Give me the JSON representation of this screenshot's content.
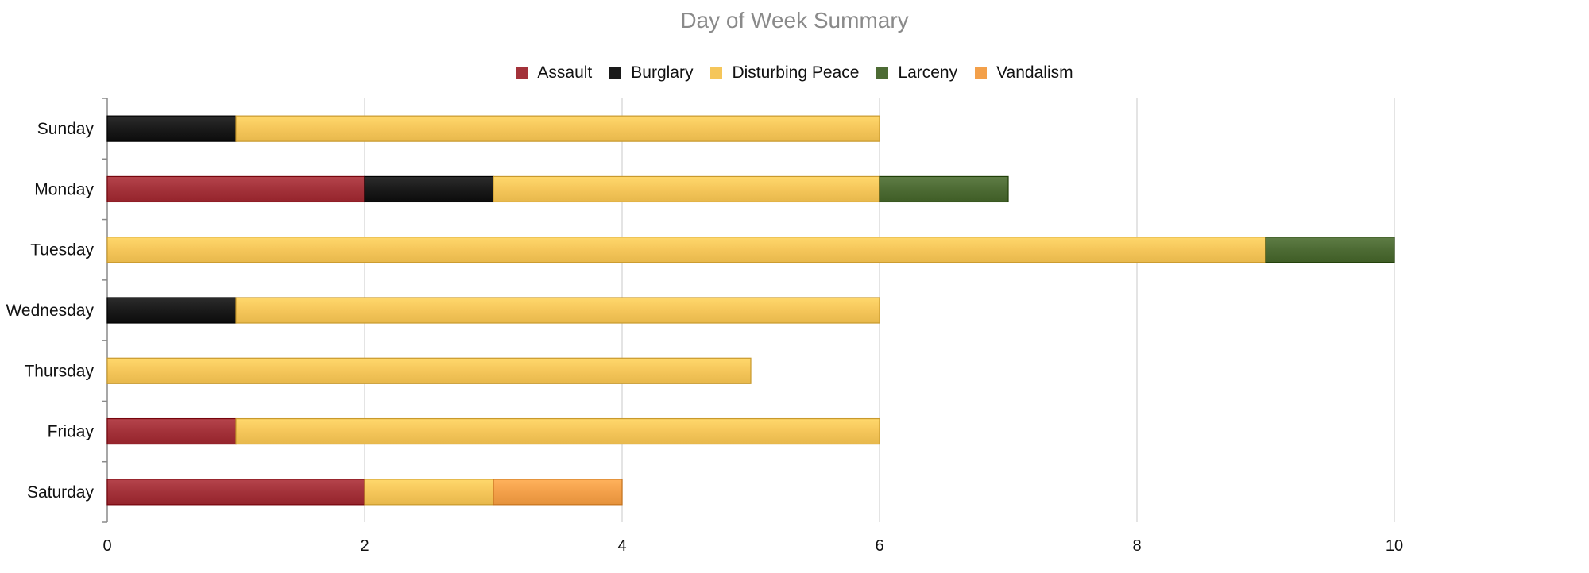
{
  "chart_data": {
    "type": "bar",
    "orientation": "horizontal",
    "stacked": true,
    "title": "Day of Week Summary",
    "categories": [
      "Sunday",
      "Monday",
      "Tuesday",
      "Wednesday",
      "Thursday",
      "Friday",
      "Saturday"
    ],
    "series": [
      {
        "name": "Assault",
        "color": "#a3323a",
        "values": [
          0,
          2,
          0,
          0,
          0,
          1,
          2
        ]
      },
      {
        "name": "Burglary",
        "color": "#1a1a1a",
        "values": [
          1,
          1,
          0,
          1,
          0,
          0,
          0
        ]
      },
      {
        "name": "Disturbing Peace",
        "color": "#f5c65a",
        "values": [
          5,
          3,
          9,
          5,
          5,
          5,
          1
        ]
      },
      {
        "name": "Larceny",
        "color": "#4d6b34",
        "values": [
          0,
          1,
          1,
          0,
          0,
          0,
          0
        ]
      },
      {
        "name": "Vandalism",
        "color": "#f3a04a",
        "values": [
          0,
          0,
          0,
          0,
          0,
          0,
          1
        ]
      }
    ],
    "xlim": [
      0,
      12
    ],
    "xticks": [
      "0",
      "2",
      "4",
      "6",
      "8",
      "10"
    ],
    "grid": true,
    "legend_position": "top-center"
  }
}
